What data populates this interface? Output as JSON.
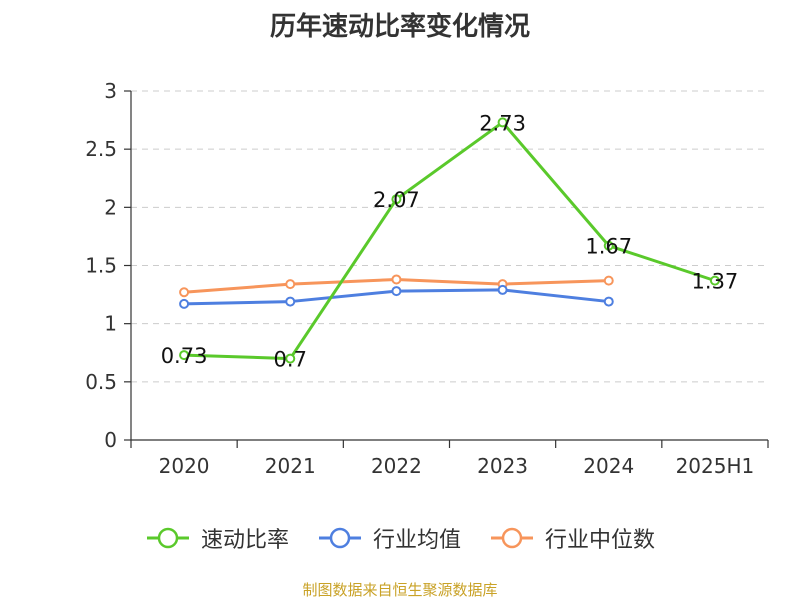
{
  "chart_data": {
    "type": "line",
    "title": "历年速动比率变化情况",
    "categories": [
      "2020",
      "2021",
      "2022",
      "2023",
      "2024",
      "2025H1"
    ],
    "ylim": [
      0,
      3
    ],
    "yticks": [
      "0",
      "0.5",
      "1",
      "1.5",
      "2",
      "2.5",
      "3"
    ],
    "ytick_values": [
      0,
      0.5,
      1,
      1.5,
      2,
      2.5,
      3
    ],
    "grid": true,
    "legend_position": "bottom",
    "series": [
      {
        "name": "速动比率",
        "values": [
          0.73,
          0.7,
          2.07,
          2.73,
          1.67,
          1.37
        ],
        "labels": [
          "0.73",
          "0.7",
          "2.07",
          "2.73",
          "1.67",
          "1.37"
        ],
        "color": "#5AC92B"
      },
      {
        "name": "行业均值",
        "values": [
          1.17,
          1.19,
          1.28,
          1.29,
          1.19,
          null
        ],
        "color": "#4E7FE0"
      },
      {
        "name": "行业中位数",
        "values": [
          1.27,
          1.34,
          1.38,
          1.34,
          1.37,
          null
        ],
        "color": "#F7955B"
      }
    ]
  },
  "source_text": "制图数据来自恒生聚源数据库"
}
